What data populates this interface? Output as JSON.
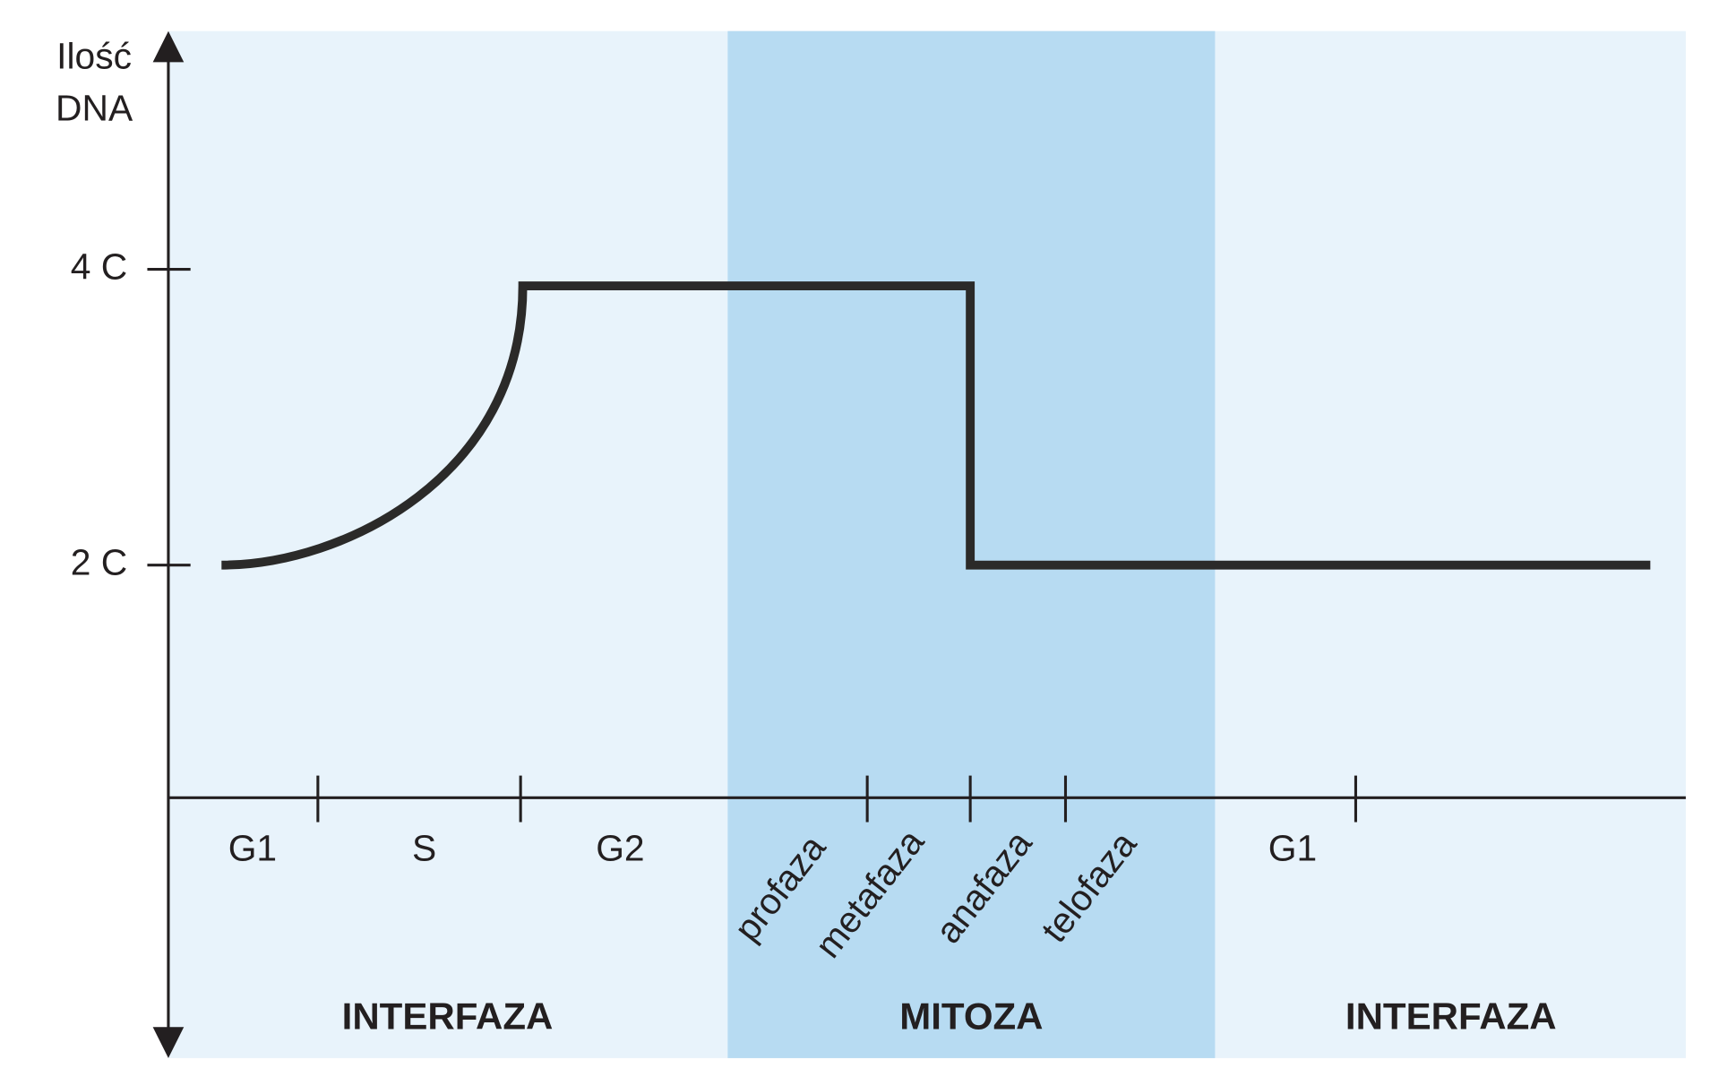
{
  "axis": {
    "label_lines": [
      "Ilość",
      "DNA"
    ],
    "levels": [
      "4 C",
      "2 C"
    ]
  },
  "phases": [
    "G1",
    "S",
    "G2",
    "profaza",
    "metafaza",
    "anafaza",
    "telofaza",
    "G1"
  ],
  "periods": [
    "INTERFAZA",
    "MITOZA",
    "INTERFAZA"
  ]
}
